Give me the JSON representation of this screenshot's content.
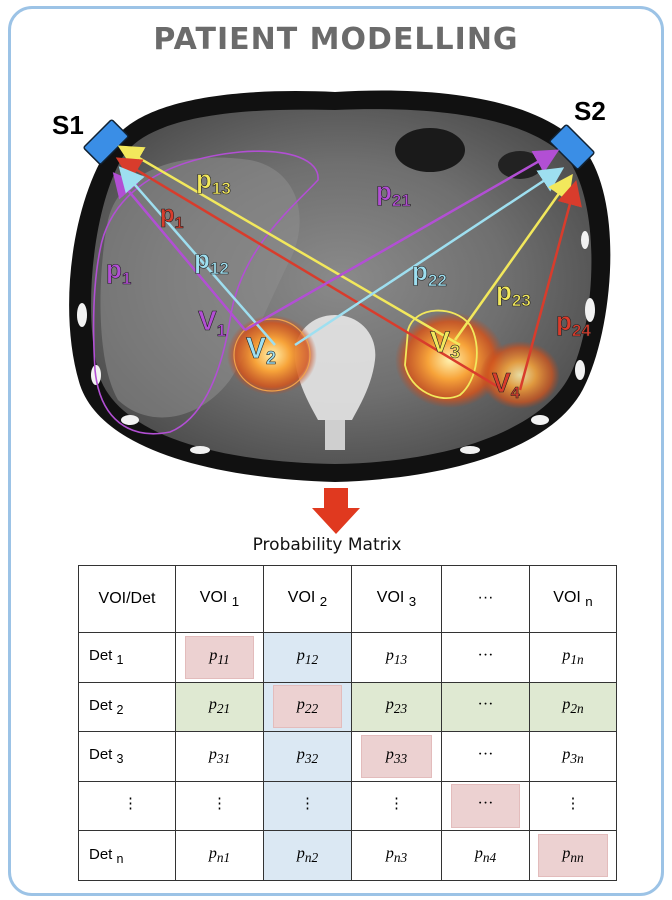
{
  "title": "PATIENT MODELLING",
  "sources": [
    "S1",
    "S2"
  ],
  "image_labels": {
    "p13": {
      "base": "p",
      "sub": "13",
      "color": "#f2e85c"
    },
    "p1x": {
      "base": "p",
      "sub": "1",
      "color": "#d83c2c"
    },
    "p11": {
      "base": "p",
      "sub": "1",
      "color": "#b24fd4"
    },
    "p12": {
      "base": "p",
      "sub": "12",
      "color": "#9edff0"
    },
    "p21": {
      "base": "p",
      "sub": "21",
      "color": "#b24fd4"
    },
    "p22": {
      "base": "p",
      "sub": "22",
      "color": "#9edff0"
    },
    "p23": {
      "base": "p",
      "sub": "23",
      "color": "#f2e85c"
    },
    "p24": {
      "base": "p",
      "sub": "24",
      "color": "#d83c2c"
    },
    "v1": {
      "base": "V",
      "sub": "1",
      "color": "#b24fd4"
    },
    "v2": {
      "base": "V",
      "sub": "2",
      "color": "#9edff0"
    },
    "v3": {
      "base": "V",
      "sub": "3",
      "color": "#f2e85c"
    },
    "v4": {
      "base": "V",
      "sub": "4",
      "color": "#d83c2c"
    }
  },
  "matrix_title": "Probability Matrix",
  "matrix": {
    "corner": "VOI/Det",
    "columns": [
      {
        "base": "VOI",
        "sub": "1"
      },
      {
        "base": "VOI",
        "sub": "2"
      },
      {
        "base": "VOI",
        "sub": "3"
      },
      {
        "base": "···",
        "sub": ""
      },
      {
        "base": "VOI",
        "sub": "n"
      }
    ],
    "rows": [
      {
        "label": {
          "base": "Det",
          "sub": "1"
        },
        "cells": [
          {
            "base": "p",
            "sub": "11"
          },
          {
            "base": "p",
            "sub": "12"
          },
          {
            "base": "p",
            "sub": "13"
          },
          {
            "base": "···",
            "sub": ""
          },
          {
            "base": "p",
            "sub": "1n"
          }
        ]
      },
      {
        "label": {
          "base": "Det",
          "sub": "2"
        },
        "cells": [
          {
            "base": "p",
            "sub": "21"
          },
          {
            "base": "p",
            "sub": "22"
          },
          {
            "base": "p",
            "sub": "23"
          },
          {
            "base": "···",
            "sub": ""
          },
          {
            "base": "p",
            "sub": "2n"
          }
        ]
      },
      {
        "label": {
          "base": "Det",
          "sub": "3"
        },
        "cells": [
          {
            "base": "p",
            "sub": "31"
          },
          {
            "base": "p",
            "sub": "32"
          },
          {
            "base": "p",
            "sub": "33"
          },
          {
            "base": "···",
            "sub": ""
          },
          {
            "base": "p",
            "sub": "3n"
          }
        ]
      },
      {
        "label": {
          "base": "⋮",
          "sub": ""
        },
        "cells": [
          {
            "base": "⋮",
            "sub": ""
          },
          {
            "base": "⋮",
            "sub": ""
          },
          {
            "base": "⋮",
            "sub": ""
          },
          {
            "base": "···",
            "sub": ""
          },
          {
            "base": "⋮",
            "sub": ""
          }
        ]
      },
      {
        "label": {
          "base": "Det",
          "sub": "n"
        },
        "cells": [
          {
            "base": "p",
            "sub": "n1"
          },
          {
            "base": "p",
            "sub": "n2"
          },
          {
            "base": "p",
            "sub": "n3"
          },
          {
            "base": "p",
            "sub": "n4"
          },
          {
            "base": "p",
            "sub": "nn"
          }
        ]
      }
    ]
  },
  "colors": {
    "frame": "#9cc3e6",
    "pink_highlight": "#ecd1d1",
    "blue_highlight": "#dbe8f3",
    "green_highlight": "#dfe9d2",
    "arrow": "#e0391f"
  }
}
